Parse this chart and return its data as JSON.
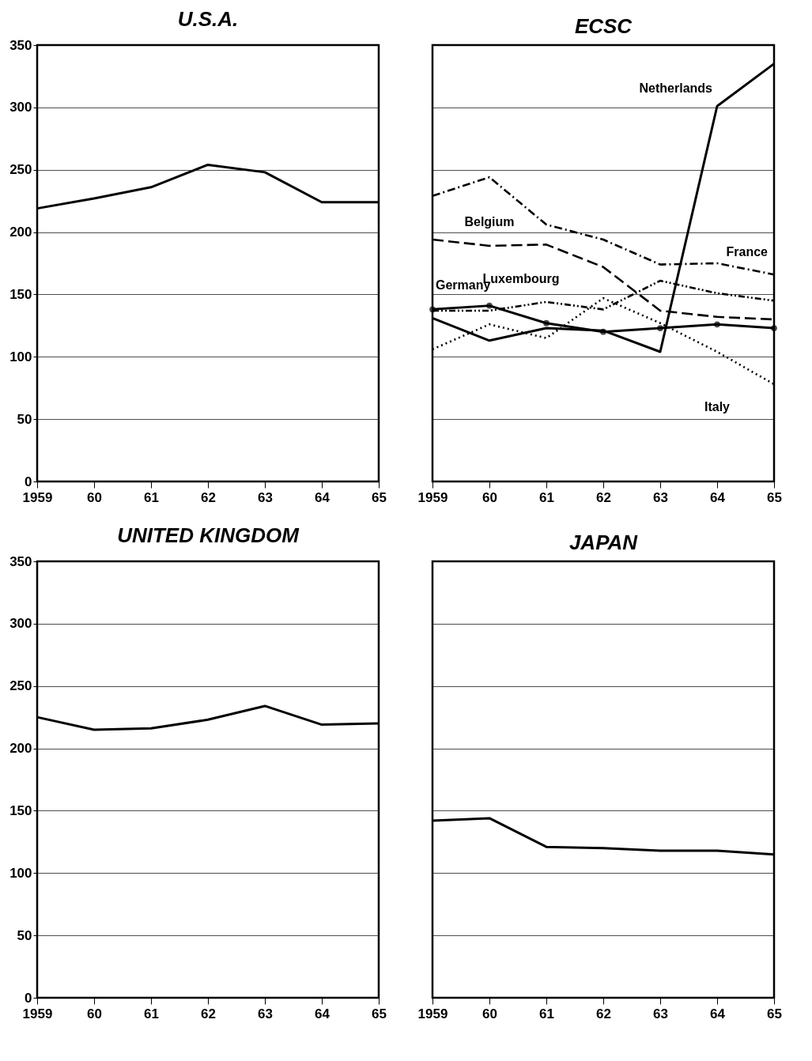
{
  "chart_data": [
    {
      "type": "line",
      "title": "U.S.A.",
      "categories": [
        "1959",
        "60",
        "61",
        "62",
        "63",
        "64",
        "65"
      ],
      "ylim": [
        0,
        350
      ],
      "yticks": [
        0,
        50,
        100,
        150,
        200,
        250,
        300,
        350
      ],
      "grid": "y",
      "line_style": "solid",
      "series": [
        {
          "color": "#000000",
          "values": [
            219,
            227,
            236,
            254,
            248,
            224,
            224
          ]
        }
      ]
    },
    {
      "type": "line",
      "title": "ECSC",
      "categories": [
        "1959",
        "60",
        "61",
        "62",
        "63",
        "64",
        "65"
      ],
      "ylim": [
        0,
        350
      ],
      "yticks": [
        0,
        50,
        100,
        150,
        200,
        250,
        300,
        350
      ],
      "grid": "y",
      "tick_labels": "x",
      "series": [
        {
          "name": "Netherlands",
          "color": "#000000",
          "line_style": "solid",
          "values": [
            131,
            113,
            123,
            121,
            104,
            301,
            335
          ]
        },
        {
          "name": "France",
          "color": "#000000",
          "line_style": "dashed",
          "values": [
            229,
            244,
            206,
            194,
            174,
            175,
            166
          ]
        },
        {
          "name": "Belgium",
          "color": "#000000",
          "line_style": "dashed",
          "values": [
            194,
            189,
            190,
            172,
            137,
            132,
            130
          ]
        },
        {
          "name": "Luxembourg",
          "color": "#000000",
          "line_style": "dashed",
          "values": [
            137,
            137,
            144,
            138,
            161,
            151,
            145
          ]
        },
        {
          "name": "Germany",
          "color": "#000000",
          "line_style": "solid",
          "marker": "circle",
          "values": [
            138,
            141,
            127,
            120,
            123,
            126,
            123
          ]
        },
        {
          "name": "Italy",
          "color": "#000000",
          "line_style": "dotted",
          "values": [
            106,
            126,
            115,
            147,
            127,
            104,
            78
          ]
        }
      ]
    },
    {
      "type": "line",
      "title": "UNITED KINGDOM",
      "categories": [
        "1959",
        "60",
        "61",
        "62",
        "63",
        "64",
        "65"
      ],
      "ylim": [
        0,
        350
      ],
      "yticks": [
        0,
        50,
        100,
        150,
        200,
        250,
        300,
        350
      ],
      "grid": "y",
      "line_style": "solid",
      "series": [
        {
          "color": "#000000",
          "values": [
            225,
            215,
            216,
            223,
            234,
            219,
            220
          ]
        }
      ]
    },
    {
      "type": "line",
      "title": "JAPAN",
      "categories": [
        "1959",
        "60",
        "61",
        "62",
        "63",
        "64",
        "65"
      ],
      "ylim": [
        0,
        350
      ],
      "yticks": [
        0,
        50,
        100,
        150,
        200,
        250,
        300,
        350
      ],
      "grid": "y",
      "tick_labels": "x",
      "line_style": "solid",
      "series": [
        {
          "color": "#000000",
          "values": [
            142,
            144,
            121,
            120,
            118,
            118,
            115
          ]
        }
      ]
    }
  ]
}
